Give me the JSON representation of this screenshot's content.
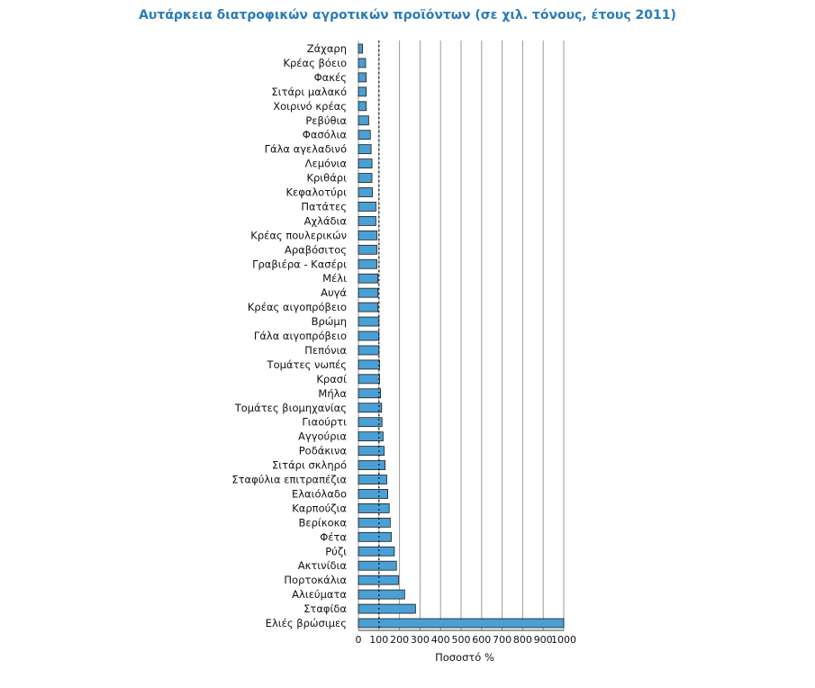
{
  "chart_data": {
    "type": "bar",
    "orientation": "horizontal",
    "title": "Αυτάρκεια διατροφικών αγροτικών προϊόντων (σε χιλ. τόνους, έτους 2011)",
    "xlabel": "Ποσοστό %",
    "ylabel": "",
    "xlim": [
      0,
      1000
    ],
    "xticks": [
      "0",
      "100",
      "200",
      "300",
      "400",
      "500",
      "600",
      "700",
      "800",
      "900",
      "1000"
    ],
    "grid": "vertical",
    "reference_line": 100,
    "bar_color": "#4a9fd4",
    "bar_edge_color": "#1a1a1a",
    "categories": [
      "Ζάχαρη",
      "Κρέας βόειο",
      "Φακές",
      "Σιτάρι μαλακό",
      "Χοιρινό κρέας",
      "Ρεβύθια",
      "Φασόλια",
      "Γάλα αγελαδινό",
      "Λεμόνια",
      "Κριθάρι",
      "Κεφαλοτύρι",
      "Πατάτες",
      "Αχλάδια",
      "Κρέας πουλερικών",
      "Αραβόσιτος",
      "Γραβιέρα - Κασέρι",
      "Μέλι",
      "Αυγά",
      "Κρέας αιγοπρόβειο",
      "Βρώμη",
      "Γάλα αιγοπρόβειο",
      "Πεπόνια",
      "Τομάτες νωπές",
      "Κρασί",
      "Μήλα",
      "Τομάτες βιομηχανίας",
      "Γιαούρτι",
      "Αγγούρια",
      "Ροδάκινα",
      "Σιτάρι σκληρό",
      "Σταφύλια επιτραπέζια",
      "Ελαιόλαδο",
      "Καρπούζια",
      "Βερίκοκα",
      "Φέτα",
      "Ρύζι",
      "Ακτινίδια",
      "Πορτοκάλια",
      "Αλιεύματα",
      "Σταφίδα",
      "Ελιές βρώσιμες"
    ],
    "values": [
      20,
      35,
      38,
      38,
      38,
      50,
      58,
      62,
      66,
      66,
      68,
      85,
      85,
      90,
      90,
      90,
      95,
      95,
      95,
      100,
      100,
      100,
      103,
      103,
      108,
      113,
      115,
      120,
      125,
      130,
      138,
      143,
      150,
      155,
      160,
      175,
      185,
      195,
      225,
      278,
      1000
    ]
  }
}
